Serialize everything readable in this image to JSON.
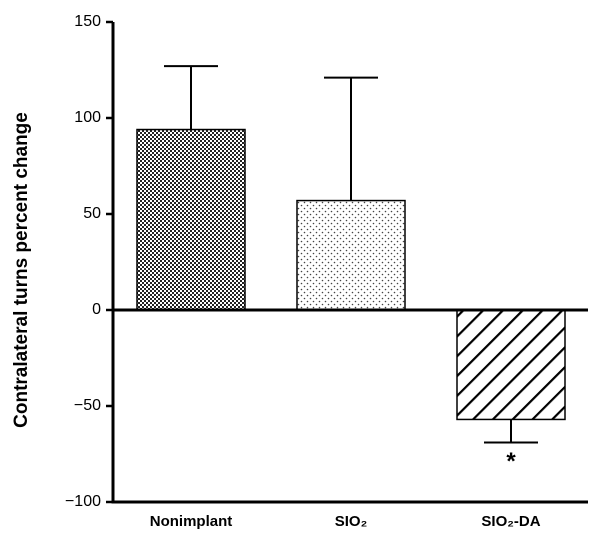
{
  "chart_data": {
    "type": "bar",
    "ylabel": "Contralateral turns percent change",
    "categories": [
      "Nonimplant",
      "SIO₂",
      "SIO₂-DA"
    ],
    "values": [
      94,
      57,
      -57
    ],
    "errors": [
      33,
      64,
      12
    ],
    "color": "#000000",
    "annotation": "*",
    "ylim": [
      -100,
      150
    ],
    "yticks": [
      {
        "value": -100,
        "label": "−100"
      },
      {
        "value": -50,
        "label": "−50"
      },
      0,
      50,
      100,
      150
    ]
  }
}
